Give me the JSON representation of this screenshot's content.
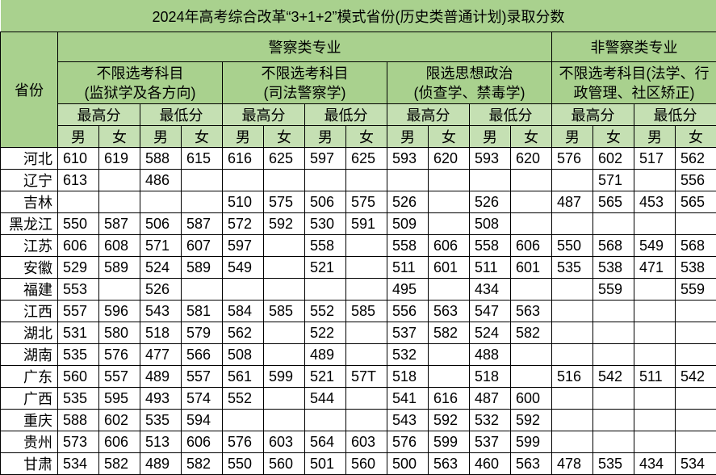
{
  "title": "2024年高考综合改革“3+1+2”模式省份(历史类普通计划)录取分数",
  "header": {
    "province": "省份",
    "police": "警察类专业",
    "non_police": "非警察类专业",
    "groups": [
      {
        "line1": "不限选考科目",
        "line2": "(监狱学及各方向)"
      },
      {
        "line1": "不限选考科目",
        "line2": "(司法警察学)"
      },
      {
        "line1": "限选思想政治",
        "line2": "(侦查学、禁毒学)"
      },
      {
        "line1": "不限选考科目(法学、行",
        "line2": "政管理、社区矫正)"
      }
    ],
    "max": "最高分",
    "min": "最低分",
    "male": "男",
    "female": "女"
  },
  "rows": [
    {
      "province": "河北",
      "values": [
        "610",
        "619",
        "588",
        "615",
        "616",
        "625",
        "597",
        "625",
        "593",
        "620",
        "593",
        "620",
        "576",
        "602",
        "517",
        "562"
      ]
    },
    {
      "province": "辽宁",
      "values": [
        "613",
        "",
        "486",
        "",
        "",
        "",
        "",
        "",
        "",
        "",
        "",
        "",
        "",
        "571",
        "",
        "556"
      ]
    },
    {
      "province": "吉林",
      "values": [
        "",
        "",
        "",
        "",
        "510",
        "575",
        "506",
        "575",
        "526",
        "",
        "526",
        "",
        "487",
        "565",
        "453",
        "565"
      ]
    },
    {
      "province": "黑龙江",
      "values": [
        "550",
        "587",
        "506",
        "587",
        "572",
        "592",
        "530",
        "591",
        "509",
        "",
        "508",
        "",
        "",
        "",
        "",
        ""
      ]
    },
    {
      "province": "江苏",
      "values": [
        "606",
        "608",
        "571",
        "607",
        "597",
        "",
        "558",
        "",
        "558",
        "606",
        "558",
        "606",
        "550",
        "568",
        "549",
        "568"
      ]
    },
    {
      "province": "安徽",
      "values": [
        "529",
        "589",
        "524",
        "589",
        "549",
        "",
        "521",
        "",
        "511",
        "601",
        "511",
        "601",
        "535",
        "538",
        "471",
        "538"
      ]
    },
    {
      "province": "福建",
      "values": [
        "553",
        "",
        "526",
        "",
        "",
        "",
        "",
        "",
        "495",
        "",
        "434",
        "",
        "",
        "559",
        "",
        "559"
      ]
    },
    {
      "province": "江西",
      "values": [
        "557",
        "596",
        "543",
        "581",
        "584",
        "585",
        "552",
        "585",
        "556",
        "563",
        "547",
        "563",
        "",
        "",
        "",
        ""
      ]
    },
    {
      "province": "湖北",
      "values": [
        "531",
        "580",
        "518",
        "579",
        "562",
        "",
        "522",
        "",
        "537",
        "582",
        "524",
        "582",
        "",
        "",
        "",
        ""
      ]
    },
    {
      "province": "湖南",
      "values": [
        "535",
        "576",
        "477",
        "566",
        "508",
        "",
        "489",
        "",
        "532",
        "",
        "488",
        "",
        "",
        "",
        "",
        ""
      ]
    },
    {
      "province": "广东",
      "values": [
        "560",
        "557",
        "489",
        "557",
        "561",
        "599",
        "521",
        "57T",
        "518",
        "",
        "518",
        "",
        "516",
        "542",
        "511",
        "542"
      ]
    },
    {
      "province": "广西",
      "values": [
        "535",
        "595",
        "493",
        "574",
        "552",
        "",
        "544",
        "",
        "541",
        "616",
        "487",
        "600",
        "",
        "",
        "",
        ""
      ]
    },
    {
      "province": "重庆",
      "values": [
        "588",
        "602",
        "535",
        "594",
        "",
        "",
        "",
        "",
        "543",
        "592",
        "532",
        "592",
        "",
        "",
        "",
        ""
      ]
    },
    {
      "province": "贵州",
      "values": [
        "573",
        "606",
        "513",
        "606",
        "576",
        "603",
        "564",
        "603",
        "576",
        "599",
        "537",
        "599",
        "",
        "",
        "",
        ""
      ]
    },
    {
      "province": "甘肃",
      "values": [
        "534",
        "582",
        "489",
        "582",
        "550",
        "560",
        "501",
        "560",
        "500",
        "563",
        "460",
        "563",
        "478",
        "535",
        "434",
        "534"
      ]
    }
  ]
}
